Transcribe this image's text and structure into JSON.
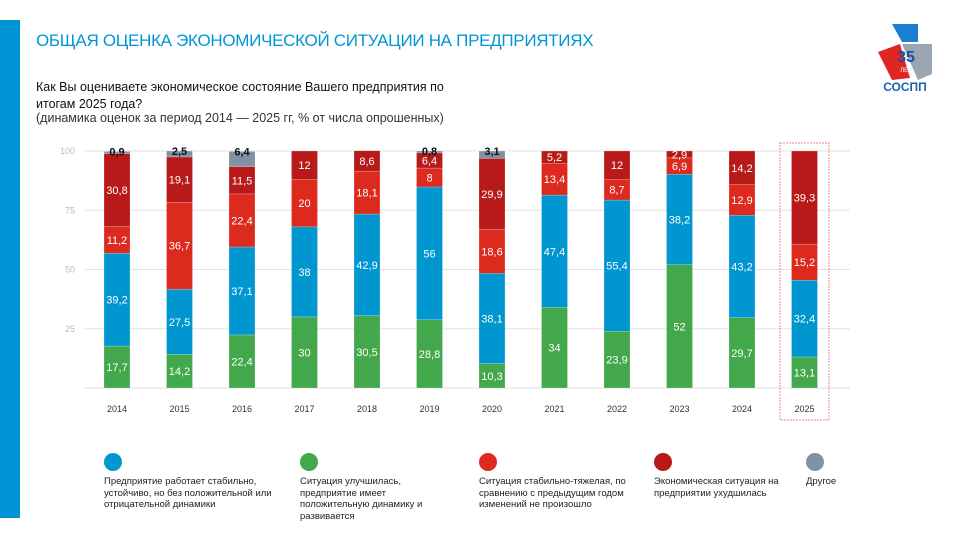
{
  "header": {
    "title": "ОБЩАЯ ОЦЕНКА ЭКОНОМИЧЕСКОЙ СИТУАЦИИ НА ПРЕДПРИЯТИЯХ",
    "question": "Как Вы оцениваете экономическое состояние Вашего предприятия по итогам 2025 года?",
    "subtitle": "(динамика оценок за период 2014 — 2025 гг, % от числа опрошенных)"
  },
  "logo": {
    "number": "35",
    "years": "ЛЕТ",
    "name": "СОСПП"
  },
  "colors": {
    "accent": "#0096d6"
  },
  "chart_data": {
    "type": "bar",
    "stacked": true,
    "categories": [
      "2014",
      "2015",
      "2016",
      "2017",
      "2018",
      "2019",
      "2020",
      "2021",
      "2022",
      "2023",
      "2024",
      "2025"
    ],
    "ylim": [
      0,
      100
    ],
    "yticks": [
      "25",
      "50",
      "75",
      "100"
    ],
    "grid": true,
    "legend_placement": "bottom",
    "highlight_category": "2025",
    "series": [
      {
        "name": "Ситуация улучшилась, предприятие имеет положительную динамику и развивается",
        "color": "#43a84c",
        "values": [
          17.7,
          14.2,
          22.4,
          30,
          30.5,
          28.8,
          10.3,
          34,
          23.9,
          52,
          29.7,
          13.1
        ],
        "labels": [
          "17,7",
          "14,2",
          "22,4",
          "30",
          "30,5",
          "28,8",
          "10,3",
          "34",
          "23,9",
          "52",
          "29,7",
          "13,1"
        ]
      },
      {
        "name": "Предприятие работает стабильно, устойчиво, но без положительной или отрицательной динамики",
        "color": "#0096d0",
        "values": [
          39.2,
          27.5,
          37.1,
          38,
          42.9,
          56,
          38.1,
          47.4,
          55.4,
          38.2,
          43.2,
          32.4
        ],
        "labels": [
          "39,2",
          "27,5",
          "37,1",
          "38",
          "42,9",
          "56",
          "38,1",
          "47,4",
          "55,4",
          "38,2",
          "43,2",
          "32,4"
        ]
      },
      {
        "name": "Ситуация стабильно-тяжелая, по сравнению с предыдущим годом изменений не произошло",
        "color": "#dc2a1e",
        "values": [
          11.2,
          36.7,
          22.4,
          20,
          18.1,
          8,
          18.6,
          13.4,
          8.7,
          6.9,
          12.9,
          15.2
        ],
        "labels": [
          "11,2",
          "36,7",
          "22,4",
          "20",
          "18,1",
          "8",
          "18,6",
          "13,4",
          "8,7",
          "6,9",
          "12,9",
          "15,2"
        ]
      },
      {
        "name": "Экономическая ситуация на предприятии ухудшилась",
        "color": "#b81a1a",
        "values": [
          30.8,
          19.1,
          11.5,
          12,
          8.6,
          6.4,
          29.9,
          5.2,
          12,
          2.9,
          14.2,
          39.3
        ],
        "labels": [
          "30,8",
          "19,1",
          "11,5",
          "12",
          "8,6",
          "6,4",
          "29,9",
          "5,2",
          "12",
          "2,9",
          "14,2",
          "39,3"
        ]
      },
      {
        "name": "Другое",
        "color": "#8192a5",
        "values": [
          0.9,
          2.5,
          6.4,
          0,
          0,
          0.8,
          3.1,
          0,
          0,
          0,
          0,
          0
        ],
        "labels": [
          "0,9",
          "2,5",
          "6,4",
          "",
          "",
          "0,8",
          "3,1",
          "",
          "",
          "",
          "",
          ""
        ]
      }
    ]
  }
}
